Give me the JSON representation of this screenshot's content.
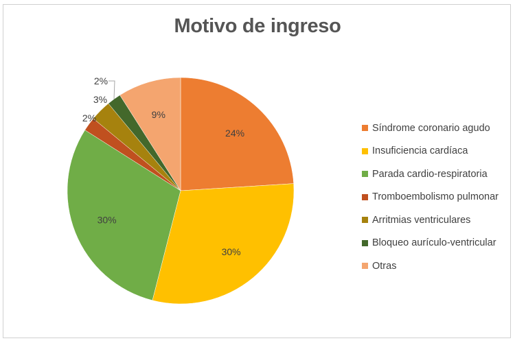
{
  "chart_data": {
    "type": "pie",
    "title": "Motivo de ingreso",
    "slices": [
      {
        "label": "Síndrome coronario agudo",
        "value": 24,
        "value_label": "24%",
        "color": "#ED7D31"
      },
      {
        "label": "Insuficiencia cardíaca",
        "value": 30,
        "value_label": "30%",
        "color": "#FFC000"
      },
      {
        "label": "Parada cardio-respiratoria",
        "value": 30,
        "value_label": "30%",
        "color": "#70AD47"
      },
      {
        "label": "Tromboembolismo pulmonar",
        "value": 2,
        "value_label": "2%",
        "color": "#C0501F"
      },
      {
        "label": "Arritmias ventriculares",
        "value": 3,
        "value_label": "3%",
        "color": "#A6820E"
      },
      {
        "label": "Bloqueo aurículo-ventricular",
        "value": 2,
        "value_label": "2%",
        "color": "#43682B"
      },
      {
        "label": "Otras",
        "value": 9,
        "value_label": "9%",
        "color": "#F4A56F"
      }
    ],
    "legend_position": "right"
  }
}
